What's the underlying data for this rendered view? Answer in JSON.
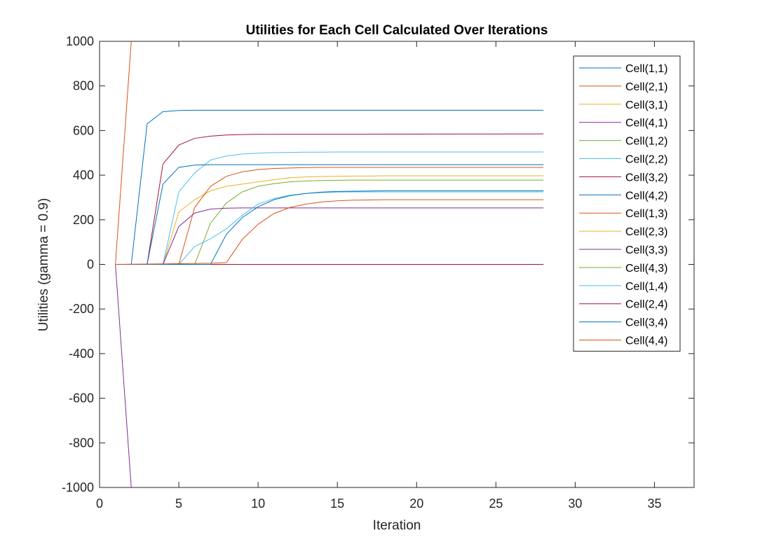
{
  "chart_data": {
    "type": "line",
    "title": "Utilities for Each Cell Calculated Over Iterations",
    "xlabel": "Iteration",
    "ylabel": "Utilities (gamma = 0.9)",
    "xlim": [
      0,
      37.5
    ],
    "ylim": [
      -1000,
      1000
    ],
    "xticks": [
      0,
      5,
      10,
      15,
      20,
      25,
      30,
      35
    ],
    "yticks": [
      1000,
      800,
      600,
      400,
      200,
      0,
      -200,
      -400,
      -600,
      -800,
      -1000
    ],
    "grid": false,
    "legend_position": "top-right",
    "series": [
      {
        "name": "Cell(1,1)",
        "color": "#0072BD",
        "x": [
          1,
          2,
          3,
          4,
          5,
          6,
          7,
          8,
          28
        ],
        "y": [
          0,
          0,
          630,
          685,
          690,
          691,
          691,
          691,
          691
        ]
      },
      {
        "name": "Cell(2,1)",
        "color": "#D95319",
        "x": [
          1,
          2,
          28
        ],
        "y": [
          0,
          1000,
          1000
        ]
      },
      {
        "name": "Cell(3,1)",
        "color": "#EDB120",
        "x": [
          1,
          4,
          5,
          6,
          7,
          8,
          9,
          10,
          11,
          12,
          13,
          14,
          15,
          16,
          17,
          18,
          28
        ],
        "y": [
          0,
          0,
          235,
          290,
          330,
          350,
          360,
          370,
          380,
          388,
          392,
          394,
          395,
          396,
          396,
          397,
          397
        ]
      },
      {
        "name": "Cell(4,1)",
        "color": "#7E2F8E",
        "x": [
          1,
          2,
          28
        ],
        "y": [
          0,
          -1000,
          -1000
        ]
      },
      {
        "name": "Cell(1,2)",
        "color": "#77AC30",
        "x": [
          1,
          6,
          7,
          8,
          9,
          10,
          11,
          12,
          13,
          14,
          15,
          16,
          17,
          18,
          20,
          28
        ],
        "y": [
          0,
          0,
          185,
          275,
          325,
          350,
          362,
          370,
          374,
          376,
          377,
          378,
          378,
          378,
          378,
          378
        ]
      },
      {
        "name": "Cell(2,2)",
        "color": "#4DBEEE",
        "x": [
          1,
          4,
          5,
          6,
          7,
          8,
          9,
          10,
          11,
          12,
          13,
          14,
          15,
          16,
          18,
          28
        ],
        "y": [
          0,
          0,
          325,
          410,
          468,
          486,
          495,
          499,
          501,
          502,
          503,
          503,
          504,
          504,
          504,
          504
        ]
      },
      {
        "name": "Cell(3,2)",
        "color": "#A2142F",
        "x": [
          1,
          3,
          4,
          5,
          6,
          7,
          8,
          9,
          10,
          28
        ],
        "y": [
          0,
          0,
          450,
          535,
          565,
          575,
          580,
          582,
          583,
          585
        ]
      },
      {
        "name": "Cell(4,2)",
        "color": "#0072BD",
        "x": [
          1,
          3,
          4,
          5,
          6,
          7,
          8,
          28
        ],
        "y": [
          0,
          0,
          360,
          435,
          445,
          447,
          447,
          447
        ]
      },
      {
        "name": "Cell(1,3)",
        "color": "#D95319",
        "x": [
          1,
          5,
          6,
          7,
          8,
          9,
          10,
          11,
          12,
          13,
          14,
          15,
          28
        ],
        "y": [
          0,
          0,
          255,
          350,
          395,
          415,
          425,
          430,
          432,
          434,
          435,
          435,
          435
        ]
      },
      {
        "name": "Cell(2,3)",
        "color": "#EDB120",
        "x": [
          1,
          28
        ],
        "y": [
          0,
          0
        ]
      },
      {
        "name": "Cell(3,3)",
        "color": "#7E2F8E",
        "x": [
          1,
          4,
          5,
          6,
          7,
          8,
          9,
          10,
          28
        ],
        "y": [
          0,
          0,
          170,
          230,
          248,
          252,
          253,
          253,
          253
        ]
      },
      {
        "name": "Cell(4,3)",
        "color": "#77AC30",
        "x": [
          1,
          28
        ],
        "y": [
          0,
          0
        ]
      },
      {
        "name": "Cell(1,4)",
        "color": "#4DBEEE",
        "x": [
          1,
          5,
          6,
          7,
          8,
          9,
          10,
          11,
          12,
          13,
          14,
          15,
          16,
          17,
          28
        ],
        "y": [
          0,
          0,
          80,
          115,
          160,
          220,
          270,
          295,
          310,
          318,
          322,
          324,
          325,
          325,
          325
        ]
      },
      {
        "name": "Cell(2,4)",
        "color": "#A2142F",
        "x": [
          1,
          28
        ],
        "y": [
          0,
          0
        ]
      },
      {
        "name": "Cell(3,4)",
        "color": "#0072BD",
        "x": [
          1,
          6,
          7,
          8,
          9,
          10,
          11,
          12,
          13,
          14,
          15,
          16,
          17,
          18,
          28
        ],
        "y": [
          0,
          0,
          0,
          135,
          210,
          258,
          290,
          308,
          318,
          324,
          327,
          328,
          329,
          330,
          330
        ]
      },
      {
        "name": "Cell(4,4)",
        "color": "#D95319",
        "x": [
          1,
          7,
          8,
          9,
          10,
          11,
          12,
          13,
          14,
          15,
          16,
          17,
          18,
          19,
          20,
          28
        ],
        "y": [
          0,
          5,
          8,
          112,
          180,
          228,
          255,
          270,
          280,
          285,
          288,
          289,
          290,
          290,
          290,
          290
        ]
      }
    ]
  }
}
